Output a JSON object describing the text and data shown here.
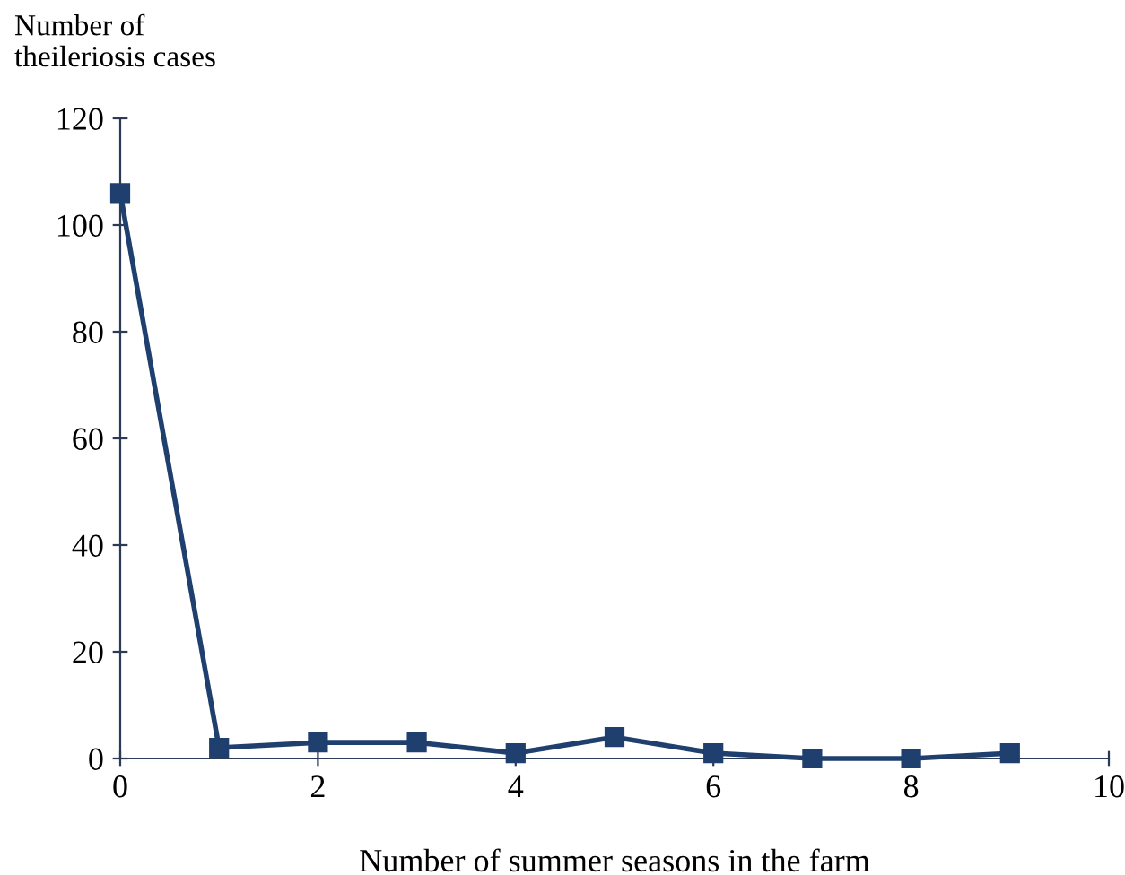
{
  "chart_data": {
    "type": "line",
    "ylabel": "Number of\ntheileriosis cases",
    "xlabel": "Number of summer seasons in the farm",
    "x": [
      0,
      1,
      2,
      3,
      4,
      5,
      6,
      7,
      8,
      9
    ],
    "series": [
      {
        "color": "#1f3f6e",
        "values": [
          106,
          2,
          3,
          3,
          1,
          4,
          1,
          0,
          0,
          1
        ]
      }
    ],
    "xlim": [
      0,
      10
    ],
    "xticks": [
      0,
      2,
      4,
      6,
      8,
      10
    ],
    "ylim": [
      0,
      120
    ],
    "yticks": [
      0,
      20,
      40,
      60,
      80,
      100,
      120
    ],
    "marker": "square",
    "line_style": "solid",
    "grid": false,
    "legend": false
  }
}
